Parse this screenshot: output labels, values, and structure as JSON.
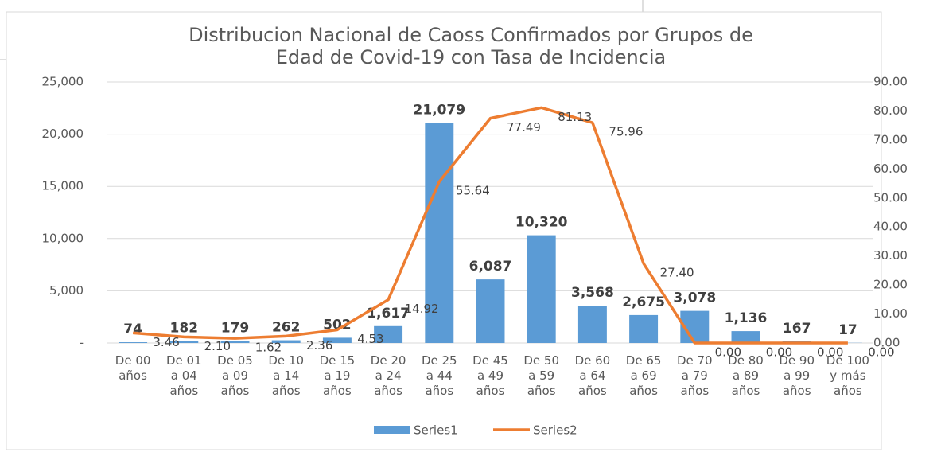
{
  "chart_data": {
    "type": "bar-line",
    "title": [
      "Distribucion  Nacional de Caoss Confirmados por Grupos de",
      "Edad de Covid-19 con Tasa de Incidencia"
    ],
    "categories": [
      "De 00 años",
      "De 01 a 04 años",
      "De 05 a 09 años",
      "De 10 a 14 años",
      "De 15 a 19 años",
      "De 20 a 24 años",
      "De 25 a 44 años",
      "De 45 a 49 años",
      "De 50 a 59 años",
      "De 60 a 64 años",
      "De 65 a 69 años",
      "De 70 a 79 años",
      "De 80 a 89 años",
      "De 90 a 99 años",
      "De 100 y más años"
    ],
    "series": [
      {
        "name": "Series1",
        "type": "bar",
        "color": "#5b9bd5",
        "values": [
          74,
          182,
          179,
          262,
          502,
          1617,
          21079,
          6087,
          10320,
          3568,
          2675,
          3078,
          1136,
          167,
          17
        ],
        "value_labels": [
          "74",
          "182",
          "179",
          "262",
          "502",
          "1,617",
          "21,079",
          "6,087",
          "10,320",
          "3,568",
          "2,675",
          "3,078",
          "1,136",
          "167",
          "17"
        ]
      },
      {
        "name": "Series2",
        "type": "line",
        "axis": "y2",
        "color": "#ed7d31",
        "values": [
          3.46,
          2.1,
          1.62,
          2.36,
          4.53,
          14.92,
          55.64,
          77.49,
          81.13,
          75.96,
          27.4,
          0.0,
          0.0,
          0.0,
          0.0
        ],
        "value_labels": [
          "3.46",
          "2.10",
          "1.62",
          "2.36",
          "4.53",
          "14.92",
          "55.64",
          "77.49",
          "81.13",
          "75.96",
          "27.40",
          "0.00",
          "0.00",
          "0.00",
          "0.00"
        ]
      }
    ],
    "ylim": [
      0,
      25000
    ],
    "yticks": [
      {
        "value": 0,
        "label": "-"
      },
      {
        "value": 5000,
        "label": "5,000"
      },
      {
        "value": 10000,
        "label": "10,000"
      },
      {
        "value": 15000,
        "label": "15,000"
      },
      {
        "value": 20000,
        "label": "20,000"
      },
      {
        "value": 25000,
        "label": "25,000"
      }
    ],
    "y2lim": [
      0,
      90
    ],
    "y2ticks": [
      {
        "value": 0,
        "label": "0.00"
      },
      {
        "value": 10,
        "label": "10.00"
      },
      {
        "value": 20,
        "label": "20.00"
      },
      {
        "value": 30,
        "label": "30.00"
      },
      {
        "value": 40,
        "label": "40.00"
      },
      {
        "value": 50,
        "label": "50.00"
      },
      {
        "value": 60,
        "label": "60.00"
      },
      {
        "value": 70,
        "label": "70.00"
      },
      {
        "value": 80,
        "label": "80.00"
      },
      {
        "value": 90,
        "label": "90.00"
      }
    ],
    "grid": true,
    "legend": "bottom"
  }
}
